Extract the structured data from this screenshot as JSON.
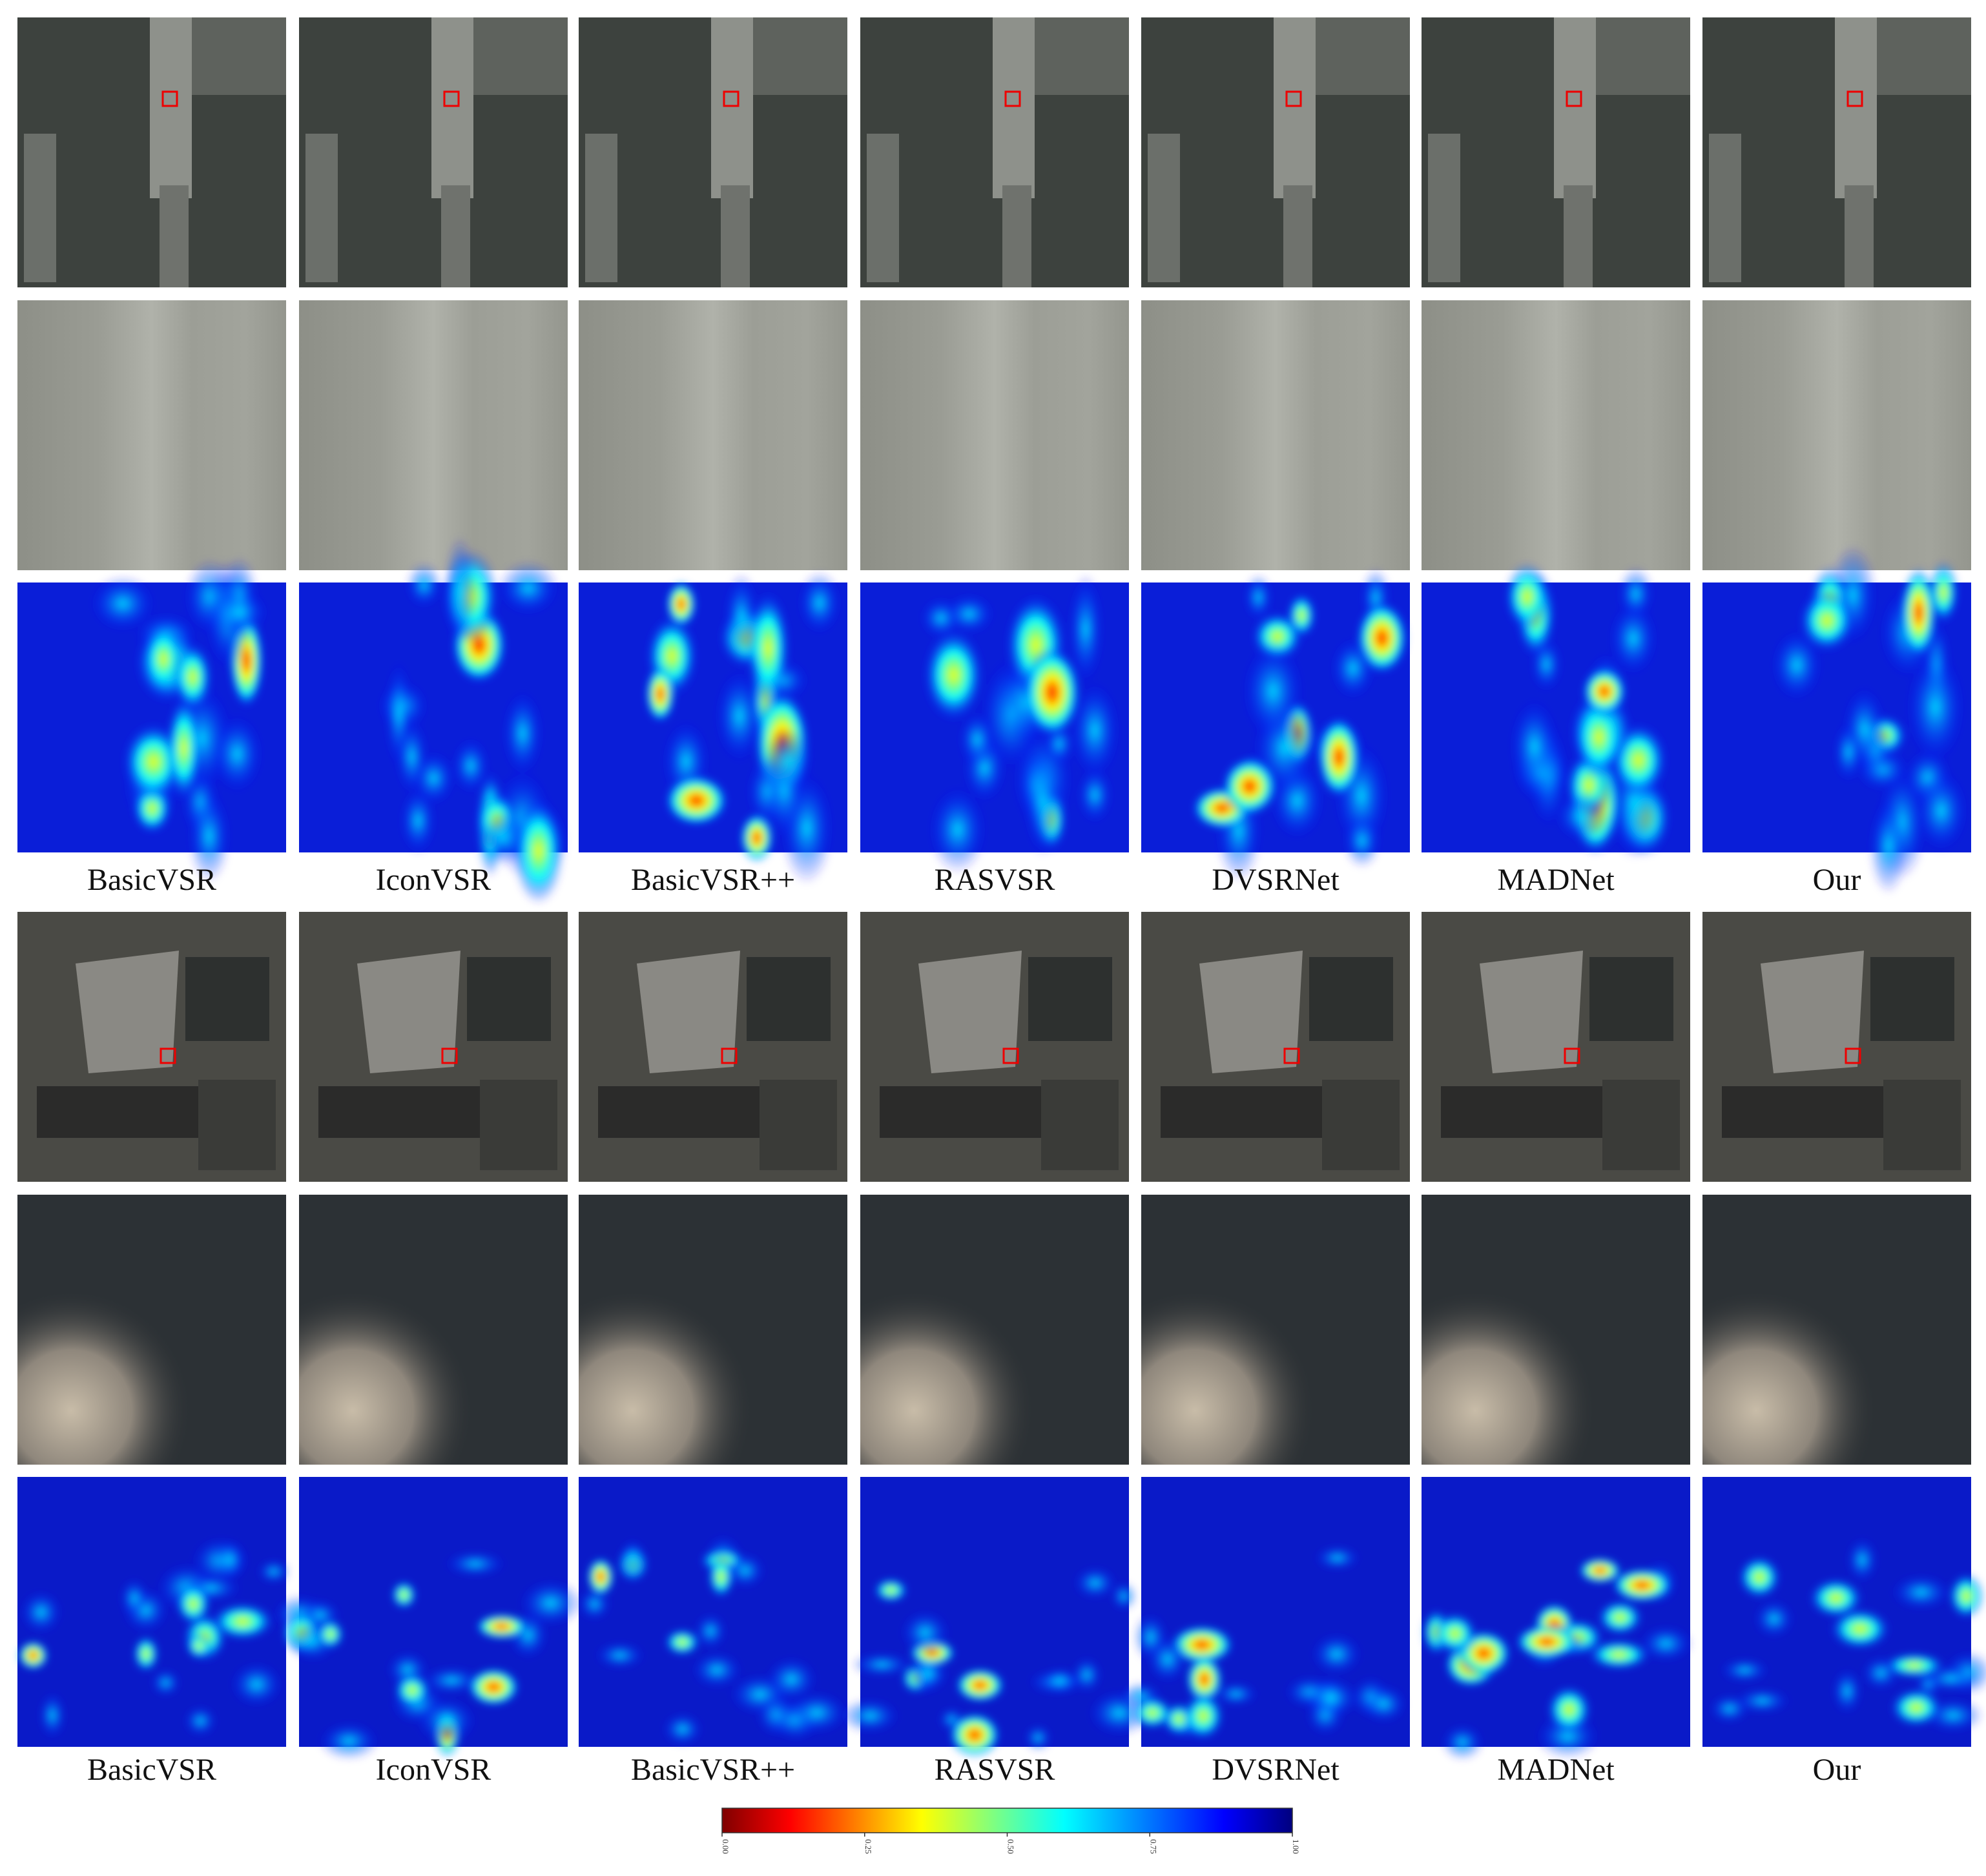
{
  "groups": [
    {
      "methods": [
        "BasicVSR",
        "IconVSR",
        "BasicVSR++",
        "RASVSR",
        "DVSRNet",
        "MADNet",
        "Our"
      ]
    },
    {
      "methods": [
        "BasicVSR",
        "IconVSR",
        "BasicVSR++",
        "RASVSR",
        "DVSRNet",
        "MADNet",
        "Our"
      ]
    }
  ],
  "colorbar": {
    "range": [
      0,
      1
    ],
    "ticks": [
      {
        "value": 0,
        "label": "0.00"
      },
      {
        "value": 0.25,
        "label": "0.25"
      },
      {
        "value": 0.5,
        "label": "0.50"
      },
      {
        "value": 0.75,
        "label": "0.75"
      },
      {
        "value": 1,
        "label": "1.00"
      }
    ]
  }
}
